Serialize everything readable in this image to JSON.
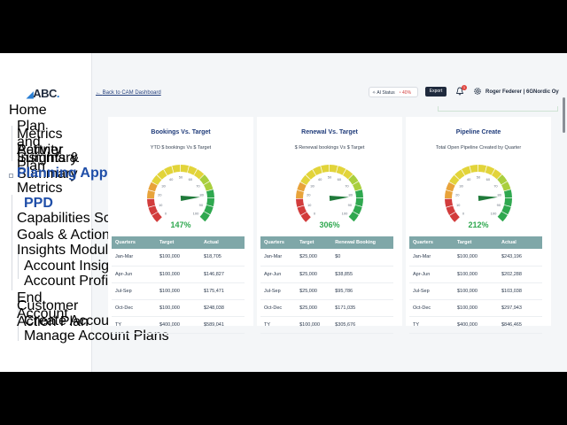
{
  "logo": "ABC",
  "sidebar": {
    "items": [
      {
        "label": "Home"
      },
      {
        "label": "Plan Metrics and Activity Summary"
      },
      {
        "label": "Partner Insights & Plan Summary"
      },
      {
        "label": "Planning Apps"
      },
      {
        "label": "Metrics"
      },
      {
        "label": "PPD"
      },
      {
        "label": "Capabilities Scorecard"
      },
      {
        "label": "Goals & Action Plan"
      },
      {
        "label": "Insights Modules"
      },
      {
        "label": "Account Insights"
      },
      {
        "label": "Account Profiles"
      },
      {
        "label": "End Customer Account Action Plan"
      },
      {
        "label": "Create Account Plans"
      },
      {
        "label": "Manage Account Plans"
      }
    ]
  },
  "header": {
    "back_label": "Back to CAM Dashboard",
    "ai_status_label": "AI Status",
    "ai_status_pct": "40%",
    "export_label": "Export",
    "notification_count": "1",
    "user_name": "Roger Federer | 6GNordic Oy"
  },
  "colors": {
    "accent": "#1f3b7a",
    "table_header": "#7fa7a8",
    "gauge_green": "#2fa84f",
    "gauge_red": "#d23c3c",
    "gauge_yellow": "#e2d43a"
  },
  "cards": [
    {
      "title": "Bookings Vs. Target",
      "subtitle": "YTD $ bookings Vs $ Target",
      "gauge_value": 147,
      "gauge_pct": "147%",
      "headers": [
        "Quarters",
        "Target",
        "Actual"
      ],
      "rows": [
        [
          "Jan-Mar",
          "$100,000",
          "$18,705"
        ],
        [
          "Apr-Jun",
          "$100,000",
          "$146,827"
        ],
        [
          "Jul-Sep",
          "$100,000",
          "$175,471"
        ],
        [
          "Oct-Dec",
          "$100,000",
          "$248,038"
        ],
        [
          "TY",
          "$400,000",
          "$589,041"
        ]
      ]
    },
    {
      "title": "Renewal Vs. Target",
      "subtitle": "$ Renewal bookings Vs $ Target",
      "gauge_value": 306,
      "gauge_pct": "306%",
      "headers": [
        "Quarters",
        "Target",
        "Renewal Booking"
      ],
      "rows": [
        [
          "Jan-Mar",
          "$25,000",
          "$0"
        ],
        [
          "Apr-Jun",
          "$25,000",
          "$38,855"
        ],
        [
          "Jul-Sep",
          "$25,000",
          "$95,786"
        ],
        [
          "Oct-Dec",
          "$25,000",
          "$171,035"
        ],
        [
          "TY",
          "$100,000",
          "$305,676"
        ]
      ]
    },
    {
      "title": "Pipeline Create",
      "subtitle": "Total Open Pipeline Created by Quarter",
      "gauge_value": 212,
      "gauge_pct": "212%",
      "headers": [
        "Quarters",
        "Target",
        "Actual"
      ],
      "rows": [
        [
          "Jan-Mar",
          "$100,000",
          "$243,196"
        ],
        [
          "Apr-Jun",
          "$100,000",
          "$202,288"
        ],
        [
          "Jul-Sep",
          "$100,000",
          "$103,038"
        ],
        [
          "Oct-Dec",
          "$100,000",
          "$297,943"
        ],
        [
          "TY",
          "$400,000",
          "$846,465"
        ]
      ]
    }
  ],
  "gauge_ticks": [
    "0",
    "10",
    "20",
    "30",
    "40",
    "50",
    "60",
    "70",
    "80",
    "90",
    "100"
  ]
}
